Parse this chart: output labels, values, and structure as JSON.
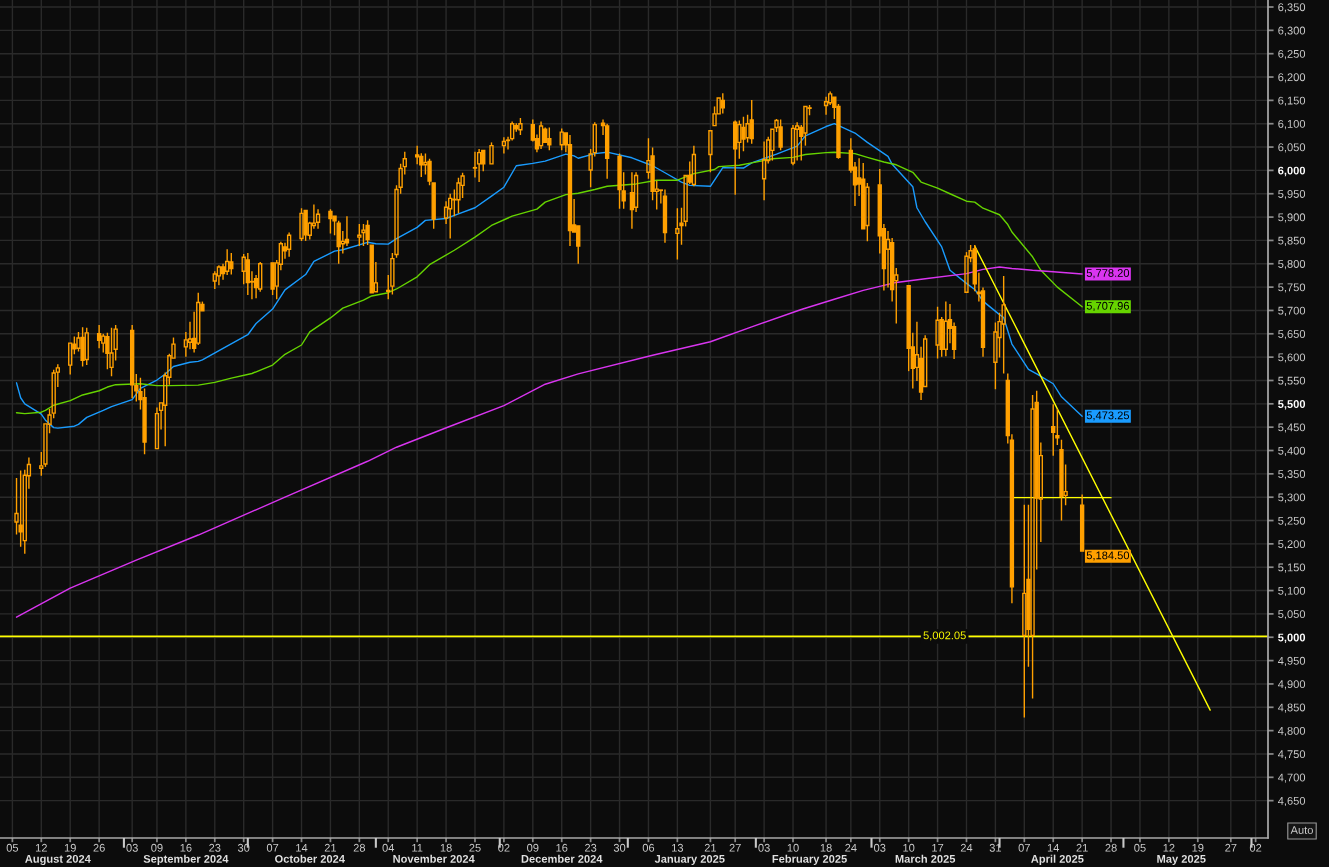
{
  "chart_data": {
    "type": "candlestick",
    "xlim": [
      "2024-08-02",
      "2025-06-05"
    ],
    "xticks": [
      {
        "value": "2024-08-05",
        "label": "05"
      },
      {
        "value": "2024-08-12",
        "label": "12"
      },
      {
        "value": "2024-08-19",
        "label": "19"
      },
      {
        "value": "2024-08-26",
        "label": "26"
      },
      {
        "value": "2024-09-03",
        "label": "03"
      },
      {
        "value": "2024-09-09",
        "label": "09"
      },
      {
        "value": "2024-09-16",
        "label": "16"
      },
      {
        "value": "2024-09-23",
        "label": "23"
      },
      {
        "value": "2024-09-30",
        "label": "30"
      },
      {
        "value": "2024-10-07",
        "label": "07"
      },
      {
        "value": "2024-10-14",
        "label": "14"
      },
      {
        "value": "2024-10-21",
        "label": "21"
      },
      {
        "value": "2024-10-28",
        "label": "28"
      },
      {
        "value": "2024-11-04",
        "label": "04"
      },
      {
        "value": "2024-11-11",
        "label": "11"
      },
      {
        "value": "2024-11-18",
        "label": "18"
      },
      {
        "value": "2024-11-25",
        "label": "25"
      },
      {
        "value": "2024-12-02",
        "label": "02"
      },
      {
        "value": "2024-12-09",
        "label": "09"
      },
      {
        "value": "2024-12-16",
        "label": "16"
      },
      {
        "value": "2024-12-23",
        "label": "23"
      },
      {
        "value": "2024-12-30",
        "label": "30"
      },
      {
        "value": "2025-01-06",
        "label": "06"
      },
      {
        "value": "2025-01-13",
        "label": "13"
      },
      {
        "value": "2025-01-21",
        "label": "21"
      },
      {
        "value": "2025-01-27",
        "label": "27"
      },
      {
        "value": "2025-02-03",
        "label": "03"
      },
      {
        "value": "2025-02-10",
        "label": "10"
      },
      {
        "value": "2025-02-18",
        "label": "18"
      },
      {
        "value": "2025-02-24",
        "label": "24"
      },
      {
        "value": "2025-03-03",
        "label": "03"
      },
      {
        "value": "2025-03-10",
        "label": "10"
      },
      {
        "value": "2025-03-17",
        "label": "17"
      },
      {
        "value": "2025-03-24",
        "label": "24"
      },
      {
        "value": "2025-03-31",
        "label": "31"
      },
      {
        "value": "2025-04-07",
        "label": "07"
      },
      {
        "value": "2025-04-14",
        "label": "14"
      },
      {
        "value": "2025-04-21",
        "label": "21"
      },
      {
        "value": "2025-04-28",
        "label": "28"
      },
      {
        "value": "2025-05-05",
        "label": "05"
      },
      {
        "value": "2025-05-12",
        "label": "12"
      },
      {
        "value": "2025-05-19",
        "label": "19"
      },
      {
        "value": "2025-05-27",
        "label": "27"
      },
      {
        "value": "2025-06-02",
        "label": "02"
      }
    ],
    "x2lim": [
      "2024-08-02",
      "2025-06-05"
    ],
    "x2ticks": [
      {
        "value": "2024-08-16",
        "label": "August 2024"
      },
      {
        "value": "2024-09-01",
        "label": null
      },
      {
        "value": "2024-09-16",
        "label": "September 2024"
      },
      {
        "value": "2024-10-01",
        "label": null
      },
      {
        "value": "2024-10-16",
        "label": "October 2024"
      },
      {
        "value": "2024-11-01",
        "label": null
      },
      {
        "value": "2024-11-15",
        "label": "November 2024"
      },
      {
        "value": "2024-12-01",
        "label": null
      },
      {
        "value": "2024-12-16",
        "label": "December 2024"
      },
      {
        "value": "2025-01-01",
        "label": null
      },
      {
        "value": "2025-01-16",
        "label": "January 2025"
      },
      {
        "value": "2025-02-01",
        "label": null
      },
      {
        "value": "2025-02-14",
        "label": "February 2025"
      },
      {
        "value": "2025-03-01",
        "label": null
      },
      {
        "value": "2025-03-14",
        "label": "March 2025"
      },
      {
        "value": "2025-04-01",
        "label": null
      },
      {
        "value": "2025-04-15",
        "label": "April 2025"
      },
      {
        "value": "2025-05-01",
        "label": null
      },
      {
        "value": "2025-05-15",
        "label": "May 2025"
      },
      {
        "value": "2025-06-01",
        "label": null
      }
    ],
    "ylim": [
      4570,
      6365
    ],
    "yticks": [
      {
        "value": 4650,
        "label": "4,650"
      },
      {
        "value": 4700,
        "label": "4,700"
      },
      {
        "value": 4750,
        "label": "4,750"
      },
      {
        "value": 4800,
        "label": "4,800"
      },
      {
        "value": 4850,
        "label": "4,850"
      },
      {
        "value": 4900,
        "label": "4,900"
      },
      {
        "value": 4950,
        "label": "4,950"
      },
      {
        "value": 5000,
        "label": "5,000"
      },
      {
        "value": 5050,
        "label": "5,050"
      },
      {
        "value": 5100,
        "label": "5,100"
      },
      {
        "value": 5150,
        "label": "5,150"
      },
      {
        "value": 5200,
        "label": "5,200"
      },
      {
        "value": 5250,
        "label": "5,250"
      },
      {
        "value": 5300,
        "label": "5,300"
      },
      {
        "value": 5350,
        "label": "5,350"
      },
      {
        "value": 5400,
        "label": "5,400"
      },
      {
        "value": 5450,
        "label": "5,450"
      },
      {
        "value": 5500,
        "label": "5,500"
      },
      {
        "value": 5550,
        "label": "5,550"
      },
      {
        "value": 5600,
        "label": "5,600"
      },
      {
        "value": 5650,
        "label": "5,650"
      },
      {
        "value": 5700,
        "label": "5,700"
      },
      {
        "value": 5750,
        "label": "5,750"
      },
      {
        "value": 5800,
        "label": "5,800"
      },
      {
        "value": 5850,
        "label": "5,850"
      },
      {
        "value": 5900,
        "label": "5,900"
      },
      {
        "value": 5950,
        "label": "5,950"
      },
      {
        "value": 6000,
        "label": "6,000"
      },
      {
        "value": 6050,
        "label": "6,050"
      },
      {
        "value": 6100,
        "label": "6,100"
      },
      {
        "value": 6150,
        "label": "6,150"
      },
      {
        "value": 6200,
        "label": "6,200"
      },
      {
        "value": 6250,
        "label": "6,250"
      },
      {
        "value": 6300,
        "label": "6,300"
      },
      {
        "value": 6350,
        "label": "6,350"
      }
    ],
    "grid": true,
    "series": [
      {
        "color": "#ffa000",
        "x": [
          "2024-08-06",
          "2024-08-07",
          "2024-08-08",
          "2024-08-09",
          "2024-08-12",
          "2024-08-13",
          "2024-08-14",
          "2024-08-15",
          "2024-08-16",
          "2024-08-19",
          "2024-08-20",
          "2024-08-21",
          "2024-08-22",
          "2024-08-23",
          "2024-08-26",
          "2024-08-27",
          "2024-08-28",
          "2024-08-29",
          "2024-08-30",
          "2024-09-03",
          "2024-09-04",
          "2024-09-05",
          "2024-09-06",
          "2024-09-09",
          "2024-09-10",
          "2024-09-11",
          "2024-09-12",
          "2024-09-13",
          "2024-09-16",
          "2024-09-17",
          "2024-09-18",
          "2024-09-19",
          "2024-09-20",
          "2024-09-23",
          "2024-09-24",
          "2024-09-25",
          "2024-09-26",
          "2024-09-27",
          "2024-09-30",
          "2024-10-01",
          "2024-10-02",
          "2024-10-03",
          "2024-10-04",
          "2024-10-07",
          "2024-10-08",
          "2024-10-09",
          "2024-10-10",
          "2024-10-11",
          "2024-10-14",
          "2024-10-15",
          "2024-10-16",
          "2024-10-17",
          "2024-10-18",
          "2024-10-21",
          "2024-10-22",
          "2024-10-23",
          "2024-10-24",
          "2024-10-25",
          "2024-10-28",
          "2024-10-29",
          "2024-10-30",
          "2024-10-31",
          "2024-11-01",
          "2024-11-04",
          "2024-11-05",
          "2024-11-06",
          "2024-11-07",
          "2024-11-08",
          "2024-11-11",
          "2024-11-12",
          "2024-11-13",
          "2024-11-14",
          "2024-11-15",
          "2024-11-18",
          "2024-11-19",
          "2024-11-20",
          "2024-11-21",
          "2024-11-22",
          "2024-11-25",
          "2024-11-26",
          "2024-11-27",
          "2024-11-29",
          "2024-12-02",
          "2024-12-03",
          "2024-12-04",
          "2024-12-05",
          "2024-12-06",
          "2024-12-09",
          "2024-12-10",
          "2024-12-11",
          "2024-12-12",
          "2024-12-13",
          "2024-12-16",
          "2024-12-17",
          "2024-12-18",
          "2024-12-19",
          "2024-12-20",
          "2024-12-23",
          "2024-12-24",
          "2024-12-26",
          "2024-12-27",
          "2024-12-30",
          "2024-12-31",
          "2025-01-02",
          "2025-01-03",
          "2025-01-06",
          "2025-01-07",
          "2025-01-08",
          "2025-01-09",
          "2025-01-10",
          "2025-01-13",
          "2025-01-14",
          "2025-01-15",
          "2025-01-16",
          "2025-01-17",
          "2025-01-21",
          "2025-01-22",
          "2025-01-23",
          "2025-01-24",
          "2025-01-27",
          "2025-01-28",
          "2025-01-29",
          "2025-01-30",
          "2025-01-31",
          "2025-02-03",
          "2025-02-04",
          "2025-02-05",
          "2025-02-06",
          "2025-02-07",
          "2025-02-10",
          "2025-02-11",
          "2025-02-12",
          "2025-02-13",
          "2025-02-14",
          "2025-02-18",
          "2025-02-19",
          "2025-02-20",
          "2025-02-21",
          "2025-02-24",
          "2025-02-25",
          "2025-02-26",
          "2025-02-27",
          "2025-02-28",
          "2025-03-03",
          "2025-03-04",
          "2025-03-05",
          "2025-03-06",
          "2025-03-07",
          "2025-03-10",
          "2025-03-11",
          "2025-03-12",
          "2025-03-13",
          "2025-03-14",
          "2025-03-17",
          "2025-03-18",
          "2025-03-19",
          "2025-03-20",
          "2025-03-21",
          "2025-03-24",
          "2025-03-25",
          "2025-03-26",
          "2025-03-27",
          "2025-03-28",
          "2025-03-31",
          "2025-04-01",
          "2025-04-02",
          "2025-04-03",
          "2025-04-04",
          "2025-04-07",
          "2025-04-08",
          "2025-04-09",
          "2025-04-10",
          "2025-04-11",
          "2025-04-14",
          "2025-04-15",
          "2025-04-16",
          "2025-04-17",
          "2025-04-21"
        ],
        "ohlc": [
          [
            5247,
            5341,
            5220,
            5265
          ],
          [
            5240,
            5357,
            5194,
            5226
          ],
          [
            5207,
            5359,
            5179,
            5347
          ],
          [
            5346,
            5385,
            5318,
            5370
          ],
          [
            5362,
            5397,
            5346,
            5367
          ],
          [
            5371,
            5457,
            5365,
            5457
          ],
          [
            5456,
            5489,
            5437,
            5476
          ],
          [
            5480,
            5573,
            5469,
            5566
          ],
          [
            5568,
            5585,
            5536,
            5577
          ],
          [
            5583,
            5630,
            5563,
            5630
          ],
          [
            5628,
            5644,
            5606,
            5618
          ],
          [
            5619,
            5654,
            5612,
            5641
          ],
          [
            5642,
            5664,
            5580,
            5593
          ],
          [
            5595,
            5663,
            5583,
            5652
          ],
          [
            5650,
            5669,
            5619,
            5636
          ],
          [
            5630,
            5650,
            5610,
            5645
          ],
          [
            5644,
            5652,
            5574,
            5608
          ],
          [
            5578,
            5663,
            5559,
            5609
          ],
          [
            5617,
            5669,
            5593,
            5660
          ],
          [
            5657,
            5669,
            5512,
            5541
          ],
          [
            5539,
            5564,
            5505,
            5528
          ],
          [
            5526,
            5556,
            5488,
            5509
          ],
          [
            5513,
            5533,
            5392,
            5418
          ],
          [
            5404,
            5492,
            5404,
            5479
          ],
          [
            5486,
            5502,
            5445,
            5502
          ],
          [
            5497,
            5567,
            5409,
            5560
          ],
          [
            5557,
            5607,
            5541,
            5603
          ],
          [
            5598,
            5642,
            5598,
            5628
          ],
          [
            5622,
            5654,
            5601,
            5637
          ],
          [
            5632,
            5676,
            5617,
            5639
          ],
          [
            5640,
            5697,
            5610,
            5619
          ],
          [
            5630,
            5738,
            5626,
            5717
          ],
          [
            5713,
            5719,
            5699,
            5699
          ],
          [
            5763,
            5784,
            5746,
            5778
          ],
          [
            5774,
            5797,
            5754,
            5793
          ],
          [
            5793,
            5800,
            5766,
            5779
          ],
          [
            5784,
            5831,
            5776,
            5805
          ],
          [
            5804,
            5823,
            5777,
            5790
          ],
          [
            5784,
            5821,
            5756,
            5814
          ],
          [
            5808,
            5823,
            5733,
            5760
          ],
          [
            5762,
            5784,
            5724,
            5761
          ],
          [
            5768,
            5776,
            5726,
            5749
          ],
          [
            5746,
            5804,
            5740,
            5800
          ],
          [
            5802,
            5802,
            5733,
            5746
          ],
          [
            5752,
            5808,
            5724,
            5802
          ],
          [
            5799,
            5847,
            5786,
            5843
          ],
          [
            5836,
            5845,
            5811,
            5828
          ],
          [
            5831,
            5867,
            5815,
            5861
          ],
          [
            5854,
            5919,
            5849,
            5908
          ],
          [
            5914,
            5914,
            5849,
            5862
          ],
          [
            5861,
            5890,
            5852,
            5887
          ],
          [
            5882,
            5927,
            5875,
            5887
          ],
          [
            5889,
            5917,
            5875,
            5906
          ],
          [
            5912,
            5917,
            5865,
            5897
          ],
          [
            5902,
            5902,
            5861,
            5892
          ],
          [
            5887,
            5892,
            5800,
            5837
          ],
          [
            5843,
            5870,
            5822,
            5848
          ],
          [
            5852,
            5902,
            5838,
            5845
          ],
          [
            5857,
            5885,
            5838,
            5861
          ],
          [
            5867,
            5885,
            5838,
            5872
          ],
          [
            5882,
            5893,
            5840,
            5852
          ],
          [
            5840,
            5840,
            5738,
            5738
          ],
          [
            5740,
            5804,
            5740,
            5759
          ],
          [
            5743,
            5776,
            5724,
            5741
          ],
          [
            5752,
            5823,
            5734,
            5811
          ],
          [
            5820,
            5968,
            5813,
            5959
          ],
          [
            5964,
            6014,
            5950,
            6004
          ],
          [
            6008,
            6040,
            5991,
            6025
          ],
          [
            6033,
            6053,
            6013,
            6029
          ],
          [
            6030,
            6037,
            5986,
            6012
          ],
          [
            6012,
            6036,
            5991,
            6017
          ],
          [
            6019,
            6025,
            5968,
            5977
          ],
          [
            5973,
            5973,
            5875,
            5896
          ],
          [
            5898,
            5934,
            5885,
            5921
          ],
          [
            5918,
            5950,
            5854,
            5940
          ],
          [
            5937,
            5959,
            5902,
            5938
          ],
          [
            5937,
            5984,
            5908,
            5973
          ],
          [
            5968,
            5995,
            5941,
            5988
          ],
          [
            6005,
            6040,
            5985,
            6006
          ],
          [
            6014,
            6046,
            5975,
            6038
          ],
          [
            6043,
            6043,
            5998,
            6014
          ],
          [
            6014,
            6060,
            6014,
            6053
          ],
          [
            6053,
            6071,
            6036,
            6062
          ],
          [
            6064,
            6072,
            6045,
            6065
          ],
          [
            6068,
            6105,
            6064,
            6100
          ],
          [
            6096,
            6101,
            6083,
            6089
          ],
          [
            6087,
            6112,
            6076,
            6100
          ],
          [
            6098,
            6109,
            6062,
            6065
          ],
          [
            6068,
            6077,
            6039,
            6046
          ],
          [
            6053,
            6105,
            6046,
            6095
          ],
          [
            6088,
            6092,
            6060,
            6060
          ],
          [
            6068,
            6092,
            6043,
            6055
          ],
          [
            6055,
            6090,
            6043,
            6082
          ],
          [
            6080,
            6080,
            6039,
            6055
          ],
          [
            6055,
            6076,
            5838,
            5871
          ],
          [
            5883,
            5939,
            5868,
            5868
          ],
          [
            5881,
            5881,
            5800,
            5838
          ],
          [
            6001,
            6046,
            5964,
            6035
          ],
          [
            6038,
            6103,
            6030,
            6098
          ],
          [
            6101,
            6109,
            6076,
            6096
          ],
          [
            6095,
            6100,
            5982,
            6026
          ],
          [
            6030,
            6036,
            5918,
            5959
          ],
          [
            5956,
            5996,
            5918,
            5935
          ],
          [
            5952,
            5996,
            5875,
            5916
          ],
          [
            5921,
            5996,
            5911,
            5989
          ],
          [
            5996,
            6069,
            5982,
            6021
          ],
          [
            6031,
            6049,
            5936,
            5955
          ],
          [
            5955,
            5978,
            5916,
            5960
          ],
          [
            5958,
            5958,
            5929,
            5957
          ],
          [
            5945,
            5959,
            5845,
            5867
          ],
          [
            5865,
            5919,
            5809,
            5875
          ],
          [
            5887,
            5920,
            5841,
            5882
          ],
          [
            5891,
            5989,
            5880,
            5989
          ],
          [
            5989,
            6019,
            5971,
            5975
          ],
          [
            5970,
            6053,
            5966,
            6034
          ],
          [
            6034,
            6085,
            5996,
            6085
          ],
          [
            6096,
            6137,
            6096,
            6121
          ],
          [
            6121,
            6155,
            6121,
            6155
          ],
          [
            6150,
            6165,
            6122,
            6134
          ],
          [
            6103,
            6107,
            5948,
            6046
          ],
          [
            6060,
            6107,
            6025,
            6098
          ],
          [
            6092,
            6115,
            6041,
            6067
          ],
          [
            6070,
            6119,
            6060,
            6100
          ],
          [
            6108,
            6151,
            6057,
            6068
          ],
          [
            5982,
            6062,
            5936,
            6023
          ],
          [
            6021,
            6072,
            6015,
            6065
          ],
          [
            6043,
            6088,
            6021,
            6088
          ],
          [
            6092,
            6110,
            6082,
            6107
          ],
          [
            6093,
            6109,
            6043,
            6050
          ],
          [
            6016,
            6097,
            6011,
            6090
          ],
          [
            6088,
            6103,
            6021,
            6095
          ],
          [
            6092,
            6097,
            6021,
            6073
          ],
          [
            6080,
            6137,
            6053,
            6137
          ],
          [
            6133,
            6140,
            6118,
            6134
          ],
          [
            6139,
            6158,
            6119,
            6147
          ],
          [
            6145,
            6169,
            6140,
            6164
          ],
          [
            6157,
            6157,
            6110,
            6135
          ],
          [
            6137,
            6142,
            6025,
            6028
          ],
          [
            6043,
            6069,
            5995,
            6001
          ],
          [
            6007,
            6018,
            5924,
            5969
          ],
          [
            5984,
            6026,
            5945,
            5971
          ],
          [
            5981,
            6016,
            5875,
            5875
          ],
          [
            5882,
            5973,
            5848,
            5964
          ],
          [
            5969,
            6003,
            5822,
            5860
          ],
          [
            5875,
            5885,
            5743,
            5790
          ],
          [
            5831,
            5870,
            5749,
            5852
          ],
          [
            5845,
            5855,
            5719,
            5745
          ],
          [
            5764,
            5791,
            5672,
            5776
          ],
          [
            5753,
            5753,
            5570,
            5619
          ],
          [
            5622,
            5652,
            5533,
            5576
          ],
          [
            5578,
            5676,
            5549,
            5605
          ],
          [
            5597,
            5622,
            5508,
            5525
          ],
          [
            5537,
            5647,
            5537,
            5639
          ],
          [
            5626,
            5708,
            5597,
            5679
          ],
          [
            5680,
            5686,
            5601,
            5617
          ],
          [
            5617,
            5719,
            5602,
            5677
          ],
          [
            5680,
            5714,
            5630,
            5662
          ],
          [
            5665,
            5674,
            5596,
            5617
          ],
          [
            5739,
            5825,
            5739,
            5816
          ],
          [
            5813,
            5840,
            5803,
            5828
          ],
          [
            5832,
            5840,
            5741,
            5757
          ],
          [
            5739,
            5781,
            5719,
            5736
          ],
          [
            5742,
            5749,
            5601,
            5621
          ],
          [
            5589,
            5674,
            5531,
            5654
          ],
          [
            5642,
            5695,
            5599,
            5676
          ],
          [
            5671,
            5774,
            5565,
            5712
          ],
          [
            5550,
            5565,
            5415,
            5432
          ],
          [
            5422,
            5435,
            5073,
            5108
          ],
          [
            5004,
            5284,
            4828,
            5094
          ],
          [
            5124,
            5284,
            4937,
            5017
          ],
          [
            5004,
            5519,
            4869,
            5489
          ],
          [
            5503,
            5528,
            5145,
            5298
          ],
          [
            5296,
            5417,
            5204,
            5389
          ],
          [
            5451,
            5499,
            5389,
            5439
          ],
          [
            5432,
            5489,
            5412,
            5427
          ],
          [
            5402,
            5423,
            5250,
            5302
          ],
          [
            5304,
            5370,
            5283,
            5312
          ],
          [
            5283,
            5306,
            5184.5,
            5184.5
          ]
        ]
      },
      {
        "type": "line",
        "color": "#1a9cff",
        "x": [
          "2024-08-06",
          "2024-08-07",
          "2024-08-08",
          "2024-08-12",
          "2024-08-13",
          "2024-08-15",
          "2024-08-16",
          "2024-08-20",
          "2024-08-21",
          "2024-08-23",
          "2024-08-27",
          "2024-08-29",
          "2024-09-03",
          "2024-09-05",
          "2024-09-09",
          "2024-09-11",
          "2024-09-13",
          "2024-09-17",
          "2024-09-19",
          "2024-09-20",
          "2024-09-25",
          "2024-10-01",
          "2024-10-03",
          "2024-10-07",
          "2024-10-10",
          "2024-10-15",
          "2024-10-17",
          "2024-10-22",
          "2024-10-24",
          "2024-10-30",
          "2024-11-01",
          "2024-11-04",
          "2024-11-06",
          "2024-11-11",
          "2024-11-13",
          "2024-11-18",
          "2024-11-21",
          "2024-11-25",
          "2024-11-29",
          "2024-12-02",
          "2024-12-05",
          "2024-12-09",
          "2024-12-12",
          "2024-12-17",
          "2024-12-19",
          "2024-12-20",
          "2024-12-24",
          "2024-12-27",
          "2025-01-02",
          "2025-01-07",
          "2025-01-10",
          "2025-01-14",
          "2025-01-16",
          "2025-01-21",
          "2025-01-24",
          "2025-01-29",
          "2025-01-31",
          "2025-02-06",
          "2025-02-11",
          "2025-02-13",
          "2025-02-18",
          "2025-02-20",
          "2025-02-25",
          "2025-02-28",
          "2025-03-05",
          "2025-03-06",
          "2025-03-11",
          "2025-03-12",
          "2025-03-14",
          "2025-03-18",
          "2025-03-20",
          "2025-03-24",
          "2025-03-26",
          "2025-03-28",
          "2025-04-01",
          "2025-04-02",
          "2025-04-04",
          "2025-04-08",
          "2025-04-10",
          "2025-04-14",
          "2025-04-16",
          "2025-04-21"
        ],
        "values": [
          5545,
          5513,
          5500,
          5478,
          5465,
          5449,
          5448,
          5452,
          5456,
          5471,
          5486,
          5494,
          5509,
          5533,
          5551,
          5564,
          5580,
          5589,
          5591,
          5594,
          5619,
          5648,
          5672,
          5703,
          5744,
          5777,
          5805,
          5827,
          5830,
          5846,
          5843,
          5842,
          5854,
          5878,
          5893,
          5897,
          5907,
          5920,
          5945,
          5964,
          6010,
          6015,
          6020,
          6035,
          6031,
          6026,
          6036,
          6039,
          6027,
          6010,
          5995,
          5975,
          5968,
          5966,
          6006,
          6005,
          6016,
          6035,
          6052,
          6074,
          6094,
          6100,
          6080,
          6060,
          6030,
          6013,
          5965,
          5920,
          5890,
          5836,
          5786,
          5758,
          5745,
          5720,
          5691,
          5685,
          5628,
          5574,
          5564,
          5543,
          5515,
          5473.25
        ],
        "value_labels": [
          null,
          null,
          null,
          null,
          null,
          null,
          null,
          null,
          null,
          null,
          null,
          null,
          null,
          null,
          null,
          null,
          null,
          null,
          null,
          null,
          null,
          null,
          null,
          null,
          null,
          null,
          null,
          null,
          null,
          null,
          null,
          null,
          null,
          null,
          null,
          null,
          null,
          null,
          null,
          null,
          null,
          null,
          null,
          null,
          null,
          null,
          null,
          null,
          null,
          null,
          null,
          null,
          null,
          null,
          null,
          null,
          null,
          null,
          null,
          null,
          null,
          null,
          null,
          null,
          null,
          null,
          null,
          null,
          null,
          null,
          null,
          null,
          null,
          null,
          null,
          null,
          null,
          null,
          null,
          null,
          null,
          "5,473.25"
        ]
      },
      {
        "type": "line",
        "color": "#66d400",
        "x": [
          "2024-08-06",
          "2024-08-08",
          "2024-08-12",
          "2024-08-13",
          "2024-08-15",
          "2024-08-19",
          "2024-08-22",
          "2024-08-26",
          "2024-08-28",
          "2024-08-30",
          "2024-09-05",
          "2024-09-09",
          "2024-09-12",
          "2024-09-19",
          "2024-09-23",
          "2024-09-27",
          "2024-10-02",
          "2024-10-07",
          "2024-10-10",
          "2024-10-14",
          "2024-10-16",
          "2024-10-21",
          "2024-10-24",
          "2024-10-29",
          "2024-10-31",
          "2024-11-04",
          "2024-11-06",
          "2024-11-11",
          "2024-11-14",
          "2024-11-20",
          "2024-11-25",
          "2024-11-29",
          "2024-12-04",
          "2024-12-10",
          "2024-12-12",
          "2024-12-17",
          "2024-12-20",
          "2024-12-24",
          "2024-12-27",
          "2025-01-03",
          "2025-01-08",
          "2025-01-13",
          "2025-01-17",
          "2025-01-22",
          "2025-01-23",
          "2025-01-28",
          "2025-01-31",
          "2025-02-05",
          "2025-02-10",
          "2025-02-13",
          "2025-02-18",
          "2025-02-20",
          "2025-02-25",
          "2025-02-28",
          "2025-03-04",
          "2025-03-07",
          "2025-03-11",
          "2025-03-13",
          "2025-03-17",
          "2025-03-20",
          "2025-03-24",
          "2025-03-26",
          "2025-03-28",
          "2025-04-01",
          "2025-04-03",
          "2025-04-04",
          "2025-04-09",
          "2025-04-11",
          "2025-04-15",
          "2025-04-21"
        ],
        "values": [
          5481,
          5479,
          5482,
          5486,
          5497,
          5507,
          5519,
          5528,
          5536,
          5541,
          5543,
          5539,
          5539,
          5540,
          5546,
          5555,
          5565,
          5583,
          5606,
          5626,
          5654,
          5684,
          5705,
          5722,
          5731,
          5738,
          5746,
          5772,
          5798,
          5829,
          5857,
          5882,
          5902,
          5917,
          5932,
          5948,
          5951,
          5959,
          5966,
          5971,
          5979,
          5979,
          5993,
          6002,
          6008,
          6011,
          6016,
          6025,
          6028,
          6034,
          6038,
          6039,
          6036,
          6028,
          6018,
          6012,
          5996,
          5975,
          5962,
          5950,
          5934,
          5932,
          5919,
          5905,
          5884,
          5868,
          5815,
          5786,
          5750,
          5707.96
        ],
        "value_labels": [
          null,
          null,
          null,
          null,
          null,
          null,
          null,
          null,
          null,
          null,
          null,
          null,
          null,
          null,
          null,
          null,
          null,
          null,
          null,
          null,
          null,
          null,
          null,
          null,
          null,
          null,
          null,
          null,
          null,
          null,
          null,
          null,
          null,
          null,
          null,
          null,
          null,
          null,
          null,
          null,
          null,
          null,
          null,
          null,
          null,
          null,
          null,
          null,
          null,
          null,
          null,
          null,
          null,
          null,
          null,
          null,
          null,
          null,
          null,
          null,
          null,
          null,
          null,
          null,
          null,
          null,
          null,
          null,
          null,
          "5,707.96"
        ]
      },
      {
        "type": "line",
        "color": "#d935f0",
        "x": [
          "2024-08-06",
          "2024-08-19",
          "2024-09-04",
          "2024-09-19",
          "2024-10-10",
          "2024-10-30",
          "2024-11-06",
          "2024-11-19",
          "2024-12-02",
          "2024-12-12",
          "2024-12-20",
          "2025-01-07",
          "2025-01-21",
          "2025-01-31",
          "2025-02-12",
          "2025-02-20",
          "2025-02-27",
          "2025-03-07",
          "2025-03-14",
          "2025-03-24",
          "2025-03-28",
          "2025-04-01",
          "2025-04-04",
          "2025-04-09",
          "2025-04-14",
          "2025-04-21"
        ],
        "values": [
          5043,
          5105,
          5165,
          5219,
          5300,
          5377,
          5407,
          5452,
          5496,
          5542,
          5564,
          5604,
          5633,
          5665,
          5702,
          5724,
          5743,
          5760,
          5768,
          5779,
          5788,
          5793,
          5790,
          5786,
          5783,
          5778.2
        ],
        "value_labels": [
          null,
          null,
          null,
          null,
          null,
          null,
          null,
          null,
          null,
          null,
          null,
          null,
          null,
          null,
          null,
          null,
          null,
          null,
          null,
          null,
          null,
          null,
          null,
          null,
          null,
          "5,778.20"
        ]
      },
      {
        "type": "line",
        "color": "#ffff00",
        "x": [
          "2025-03-26",
          "2025-05-22"
        ],
        "values": [
          5838,
          4844
        ]
      },
      {
        "type": "line",
        "color": "#ffff00",
        "x": [
          "2025-04-04",
          "2025-04-28"
        ],
        "values": [
          5299,
          5299
        ]
      }
    ],
    "ref_lines": [
      {
        "axis": "y",
        "value": 5002.05,
        "label": "5,002.05",
        "color": "#ffff00"
      }
    ],
    "annotations": [
      {
        "text": "5,184.50",
        "x": "2025-04-21",
        "y": 5184.5
      },
      "Auto"
    ]
  }
}
